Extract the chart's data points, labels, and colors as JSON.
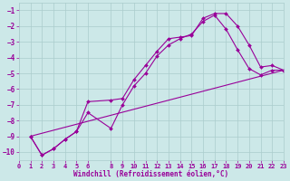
{
  "background_color": "#cce8e8",
  "grid_color": "#aacccc",
  "line_color": "#990099",
  "marker_color": "#990099",
  "xlabel": "Windchill (Refroidissement éolien,°C)",
  "xlim": [
    0,
    23
  ],
  "ylim": [
    -10.5,
    -0.5
  ],
  "xticks": [
    0,
    1,
    2,
    3,
    4,
    5,
    6,
    8,
    9,
    10,
    11,
    12,
    13,
    14,
    15,
    16,
    17,
    18,
    19,
    20,
    21,
    22,
    23
  ],
  "yticks": [
    -1,
    -2,
    -3,
    -4,
    -5,
    -6,
    -7,
    -8,
    -9,
    -10
  ],
  "curve1_x": [
    1,
    2,
    3,
    4,
    5,
    6,
    8,
    9,
    10,
    11,
    12,
    13,
    14,
    15,
    16,
    17,
    18,
    19,
    20,
    21,
    22,
    23
  ],
  "curve1_y": [
    -9.0,
    -10.2,
    -9.8,
    -9.2,
    -8.7,
    -6.8,
    -6.7,
    -6.6,
    -5.4,
    -4.5,
    -3.6,
    -2.8,
    -2.7,
    -2.6,
    -1.5,
    -1.2,
    -1.2,
    -2.0,
    -3.2,
    -4.6,
    -4.5,
    -4.8
  ],
  "curve2_x": [
    1,
    2,
    3,
    4,
    5,
    6,
    8,
    9,
    10,
    11,
    12,
    13,
    14,
    15,
    16,
    17,
    18,
    19,
    20,
    21,
    22,
    23
  ],
  "curve2_y": [
    -9.0,
    -10.2,
    -9.8,
    -9.2,
    -8.7,
    -7.5,
    -8.5,
    -7.0,
    -5.8,
    -5.0,
    -3.9,
    -3.2,
    -2.8,
    -2.5,
    -1.7,
    -1.3,
    -2.2,
    -3.5,
    -4.7,
    -5.1,
    -4.8,
    -4.8
  ],
  "curve3_x": [
    1,
    23
  ],
  "curve3_y": [
    -9.0,
    -4.8
  ],
  "figsize": [
    3.2,
    2.0
  ],
  "dpi": 100
}
